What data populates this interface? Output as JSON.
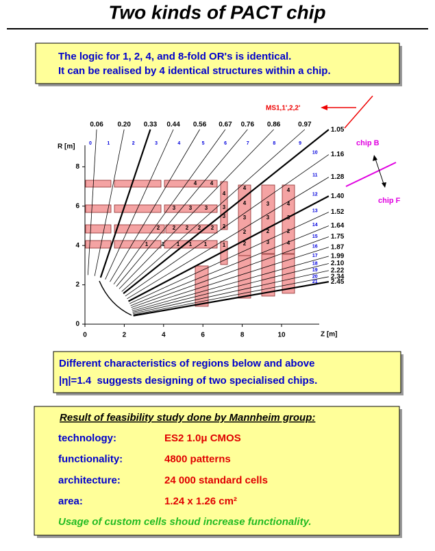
{
  "title": "Two kinds of PACT chip",
  "box1": {
    "lines": [
      "The logic for 1, 2, 4, and 8-fold OR's is identical.",
      "It can be realised by 4 identical structures within a chip."
    ]
  },
  "diagram": {
    "r_label": "R [m]",
    "z_label": "Z [m]",
    "zticks": [
      0,
      2,
      4,
      6,
      8,
      10
    ],
    "rticks": [
      0,
      2,
      4,
      6,
      8
    ],
    "eta": [
      0.06,
      {
        "value": 0.2,
        "label": "0.20"
      },
      0.33,
      0.44,
      0.56,
      0.67,
      0.76,
      0.86,
      0.97,
      1.05,
      1.16,
      1.28,
      {
        "value": 1.4,
        "label": "1.40"
      },
      1.52,
      1.64,
      1.75,
      1.87,
      1.99,
      {
        "value": 2.1,
        "label": "2.10"
      },
      2.22,
      2.34,
      2.45
    ],
    "segments": [
      0,
      1,
      2,
      3,
      4,
      5,
      6,
      7,
      8,
      9,
      10,
      11,
      12,
      13,
      14,
      15,
      16,
      17,
      18,
      19,
      20,
      21
    ],
    "chamber_labels": [
      4,
      4,
      3,
      3,
      3,
      2,
      2,
      2,
      2,
      2,
      1,
      1,
      1,
      1,
      1,
      4,
      3,
      3,
      2,
      1,
      4,
      4,
      3,
      2,
      2,
      3,
      3,
      2,
      3,
      4,
      4,
      3,
      2,
      4
    ],
    "ms_label": "MS1,1',2,2'",
    "chip_b": "chip B",
    "chip_f": "chip F"
  },
  "box2": {
    "lines": [
      "Different characteristics of regions below and above",
      "|η|=1.4  suggests designing of two specialised chips."
    ]
  },
  "result": {
    "heading": "Result of feasibility study done by Mannheim group:",
    "rows": [
      {
        "label": "technology:",
        "value": "ES2 1.0μ CMOS"
      },
      {
        "label": "functionality:",
        "value": "4800 patterns"
      },
      {
        "label": "architecture:",
        "value": "24 000 standard cells"
      },
      {
        "label": "area:",
        "value": "1.24 x 1.26 cm²"
      }
    ],
    "note": "Usage of custom cells shoud increase functionality."
  }
}
